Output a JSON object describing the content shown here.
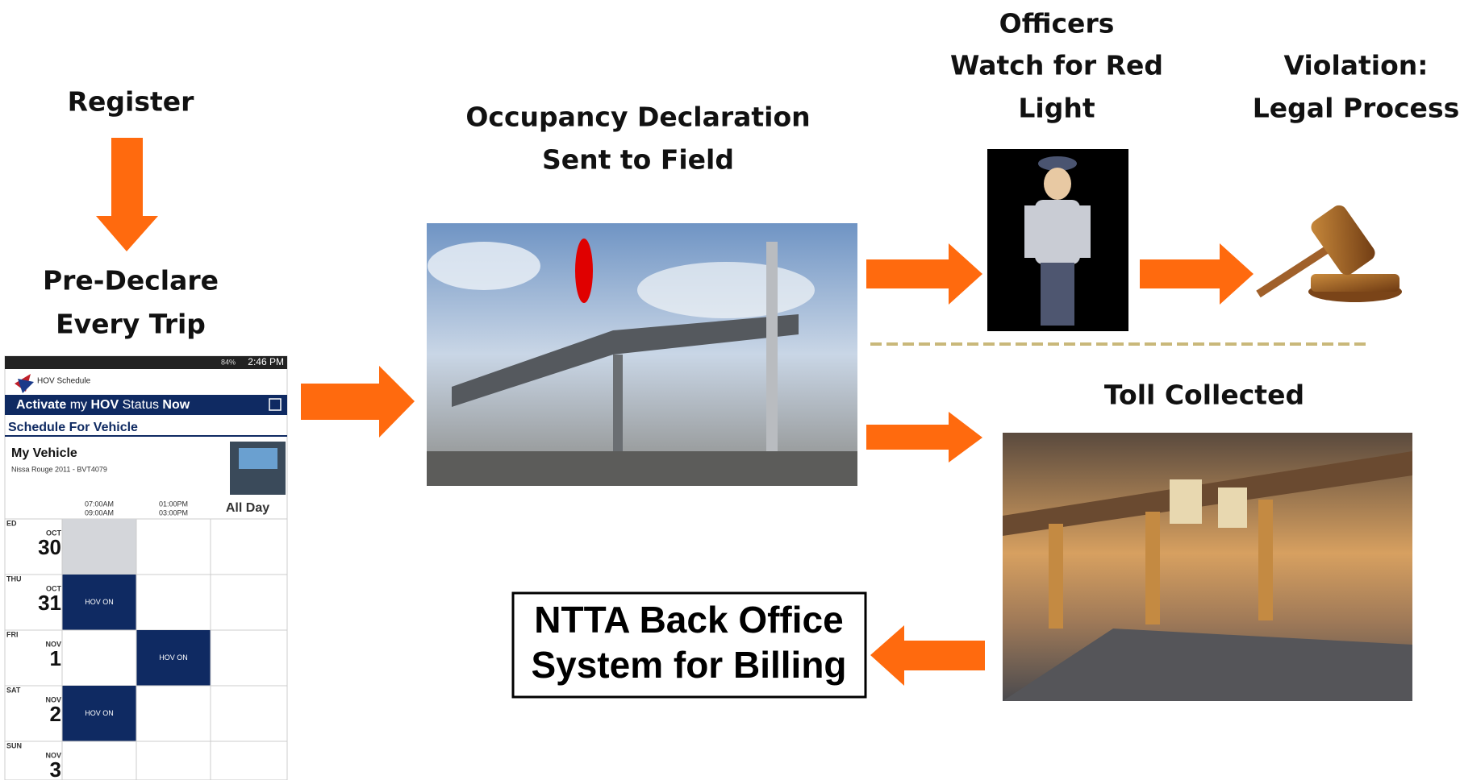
{
  "steps": {
    "register": "Register",
    "pre_declare": [
      "Pre-Declare",
      "Every Trip"
    ],
    "occupancy": [
      "Occupancy Declaration",
      "Sent to Field"
    ],
    "officers": [
      "Officers",
      "Watch for Red",
      "Light"
    ],
    "violation": [
      "Violation:",
      "Legal Process"
    ],
    "toll": "Toll Collected",
    "back_office": [
      "NTTA Back Office",
      "System for Billing"
    ]
  },
  "phone": {
    "battery": "84%",
    "time": "2:46 PM",
    "app_title": "HOV Schedule",
    "activate": [
      "Activate",
      "my",
      "HOV",
      "Status",
      "Now"
    ],
    "schedule_for": "Schedule For Vehicle",
    "vehicle": "My Vehicle",
    "vehicle_info": "Nissa Rouge 2011 - BVT4079",
    "columns": [
      [
        "07:00AM",
        "09:00AM"
      ],
      [
        "01:00PM",
        "03:00PM"
      ],
      [
        "All Day"
      ]
    ],
    "days": [
      {
        "dow": "ED",
        "month": "OCT",
        "day": "30",
        "slots": [
          null,
          null,
          null
        ]
      },
      {
        "dow": "THU",
        "month": "OCT",
        "day": "31",
        "slots": [
          "HOV ON",
          null,
          null
        ]
      },
      {
        "dow": "FRI",
        "month": "NOV",
        "day": "1",
        "slots": [
          null,
          "HOV ON",
          null
        ]
      },
      {
        "dow": "SAT",
        "month": "NOV",
        "day": "2",
        "slots": [
          "HOV ON",
          null,
          null
        ]
      },
      {
        "dow": "SUN",
        "month": "NOV",
        "day": "3",
        "slots": [
          null,
          null,
          null
        ]
      }
    ]
  }
}
